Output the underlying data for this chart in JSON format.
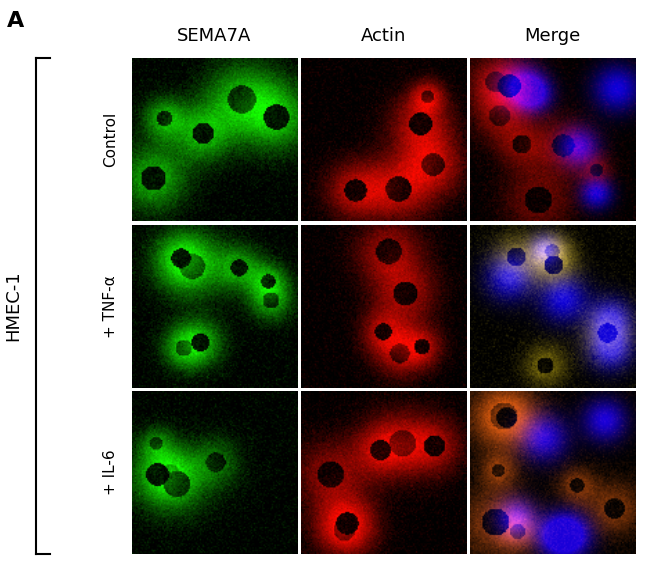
{
  "panel_label": "A",
  "col_headers": [
    "SEMA7A",
    "Actin",
    "Merge"
  ],
  "row_labels": [
    "Control",
    "+ TNF-α",
    "+ IL-6"
  ],
  "group_label": "HMEC-1",
  "background_color": "#ffffff",
  "header_fontsize": 13,
  "row_label_fontsize": 11,
  "group_label_fontsize": 13,
  "panel_label_fontsize": 16,
  "figure_width": 6.5,
  "figure_height": 5.67,
  "dpi": 100
}
